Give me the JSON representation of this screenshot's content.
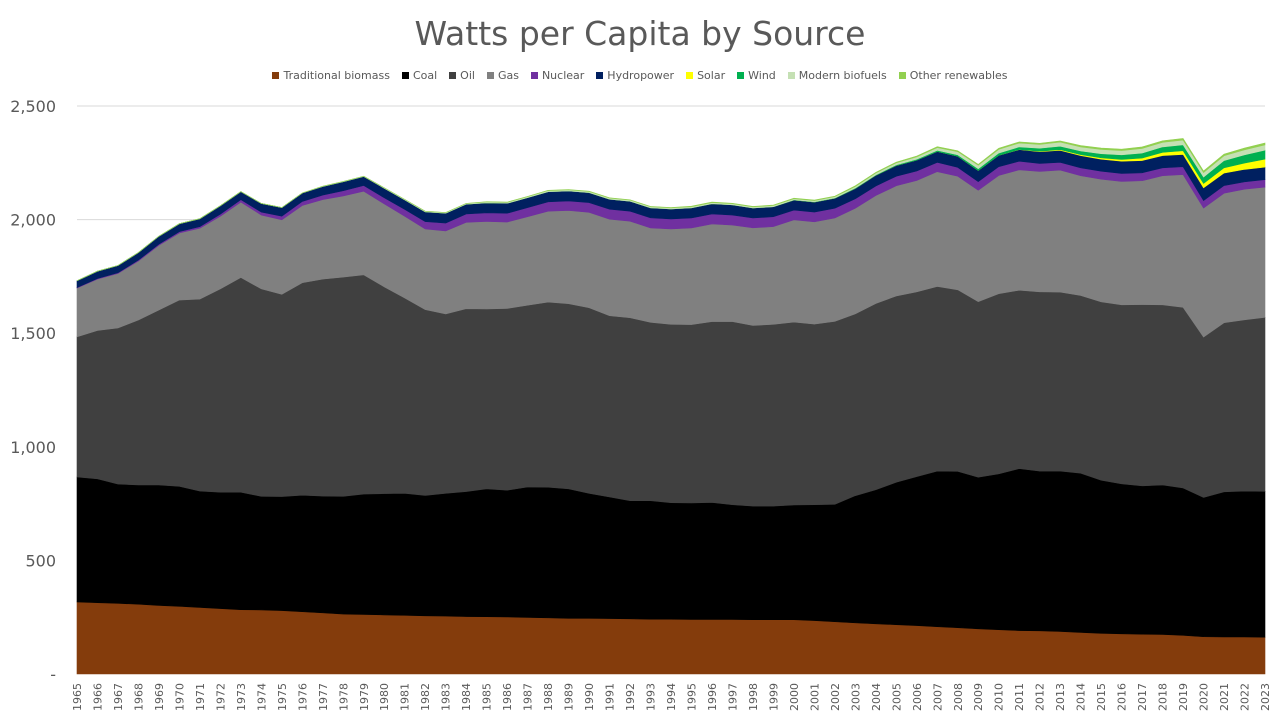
{
  "chart_data": {
    "type": "area",
    "title": "Watts per Capita by Source",
    "xlabel": "",
    "ylabel": "",
    "stacked": true,
    "ylim": [
      0,
      2500
    ],
    "grid": true,
    "legend_position": "top",
    "y_ticks": [
      "-",
      "500",
      "1,000",
      "1,500",
      "2,000",
      "2,500"
    ],
    "x": [
      1965,
      1966,
      1967,
      1968,
      1969,
      1970,
      1971,
      1972,
      1973,
      1974,
      1975,
      1976,
      1977,
      1978,
      1979,
      1980,
      1981,
      1982,
      1983,
      1984,
      1985,
      1986,
      1987,
      1988,
      1989,
      1990,
      1991,
      1992,
      1993,
      1994,
      1995,
      1996,
      1997,
      1998,
      1999,
      2000,
      2001,
      2002,
      2003,
      2004,
      2005,
      2006,
      2007,
      2008,
      2009,
      2010,
      2011,
      2012,
      2013,
      2014,
      2015,
      2016,
      2017,
      2018,
      2019,
      2020,
      2021,
      2022,
      2023
    ],
    "series": [
      {
        "name": "Traditional biomass",
        "color": "#843C0C",
        "values": [
          317,
          314,
          311,
          307,
          302,
          298,
          293,
          288,
          283,
          282,
          279,
          274,
          269,
          264,
          262,
          260,
          258,
          256,
          255,
          253,
          252,
          251,
          249,
          247,
          245,
          245,
          244,
          243,
          241,
          241,
          240,
          240,
          240,
          239,
          239,
          239,
          235,
          230,
          225,
          221,
          217,
          213,
          208,
          204,
          199,
          195,
          191,
          190,
          187,
          183,
          179,
          177,
          175,
          174,
          170,
          164,
          163,
          163,
          162
        ]
      },
      {
        "name": "Coal",
        "color": "#000000",
        "values": [
          550,
          545,
          525,
          525,
          530,
          528,
          512,
          512,
          517,
          500,
          502,
          513,
          514,
          518,
          530,
          534,
          537,
          530,
          540,
          550,
          563,
          558,
          574,
          575,
          570,
          550,
          535,
          520,
          522,
          513,
          513,
          515,
          505,
          500,
          500,
          505,
          510,
          517,
          560,
          590,
          627,
          656,
          685,
          688,
          667,
          686,
          713,
          703,
          706,
          701,
          674,
          660,
          653,
          658,
          649,
          613,
          639,
          642,
          642
        ]
      },
      {
        "name": "Oil",
        "color": "#404040",
        "values": [
          617,
          653,
          687,
          726,
          770,
          820,
          845,
          895,
          945,
          913,
          890,
          935,
          955,
          965,
          965,
          910,
          860,
          818,
          790,
          805,
          792,
          800,
          800,
          815,
          815,
          817,
          798,
          805,
          785,
          785,
          785,
          796,
          806,
          795,
          800,
          805,
          795,
          805,
          800,
          820,
          820,
          813,
          813,
          799,
          773,
          793,
          785,
          789,
          788,
          782,
          785,
          788,
          798,
          793,
          795,
          706,
          744,
          754,
          766
        ]
      },
      {
        "name": "Gas",
        "color": "#808080",
        "values": [
          215,
          226,
          240,
          260,
          285,
          295,
          312,
          320,
          332,
          325,
          328,
          340,
          350,
          357,
          368,
          365,
          360,
          355,
          365,
          380,
          385,
          380,
          390,
          400,
          410,
          420,
          425,
          425,
          415,
          420,
          425,
          430,
          425,
          430,
          430,
          450,
          450,
          455,
          465,
          475,
          485,
          490,
          505,
          500,
          490,
          520,
          530,
          530,
          537,
          527,
          540,
          543,
          545,
          568,
          584,
          568,
          570,
          575,
          573
        ]
      },
      {
        "name": "Nuclear",
        "color": "#7030A0",
        "values": [
          2,
          3,
          3,
          4,
          5,
          6,
          7,
          9,
          11,
          13,
          16,
          18,
          20,
          23,
          25,
          27,
          30,
          32,
          35,
          37,
          38,
          39,
          40,
          41,
          42,
          43,
          44,
          44,
          45,
          44,
          44,
          44,
          44,
          43,
          44,
          43,
          43,
          43,
          42,
          42,
          42,
          42,
          41,
          39,
          38,
          39,
          38,
          35,
          34,
          35,
          35,
          35,
          35,
          35,
          35,
          33,
          34,
          32,
          33
        ]
      },
      {
        "name": "Hydropower",
        "color": "#002060",
        "values": [
          30,
          32,
          32,
          33,
          35,
          35,
          35,
          37,
          35,
          38,
          38,
          37,
          38,
          40,
          40,
          42,
          42,
          43,
          43,
          43,
          44,
          44,
          44,
          45,
          44,
          44,
          44,
          44,
          44,
          44,
          45,
          45,
          45,
          44,
          44,
          44,
          44,
          44,
          45,
          47,
          47,
          48,
          48,
          49,
          49,
          50,
          51,
          52,
          53,
          54,
          53,
          54,
          54,
          54,
          54,
          56,
          55,
          55,
          55
        ]
      },
      {
        "name": "Solar",
        "color": "#FFFF00",
        "values": [
          0,
          0,
          0,
          0,
          0,
          0,
          0,
          0,
          0,
          0,
          0,
          0,
          0,
          0,
          0,
          0,
          0,
          0,
          0,
          0,
          0,
          0,
          0,
          0,
          0,
          0,
          0,
          0,
          0,
          0,
          0,
          0,
          0,
          0,
          0,
          0,
          0,
          0,
          0,
          0,
          0,
          0,
          0,
          0,
          0,
          0,
          1,
          2,
          3,
          4,
          6,
          8,
          11,
          14,
          16,
          19,
          23,
          28,
          35
        ]
      },
      {
        "name": "Wind",
        "color": "#00B050",
        "values": [
          0,
          0,
          0,
          0,
          0,
          0,
          0,
          0,
          0,
          0,
          0,
          0,
          0,
          0,
          0,
          0,
          0,
          0,
          0,
          0,
          0,
          0,
          0,
          0,
          0,
          0,
          0,
          0,
          0,
          0,
          0,
          0,
          0,
          0,
          0,
          1,
          1,
          1,
          2,
          2,
          3,
          4,
          5,
          6,
          8,
          10,
          11,
          13,
          15,
          16,
          18,
          20,
          22,
          24,
          26,
          28,
          32,
          36,
          40
        ]
      },
      {
        "name": "Modern biofuels",
        "color": "#C5E0B4",
        "values": [
          0,
          0,
          0,
          0,
          0,
          0,
          0,
          0,
          0,
          0,
          0,
          0,
          1,
          1,
          1,
          2,
          2,
          3,
          3,
          3,
          4,
          4,
          4,
          5,
          5,
          5,
          5,
          5,
          5,
          5,
          5,
          5,
          5,
          5,
          5,
          5,
          6,
          6,
          7,
          8,
          9,
          10,
          12,
          14,
          15,
          16,
          17,
          17,
          18,
          18,
          19,
          19,
          20,
          20,
          21,
          20,
          21,
          22,
          23
        ]
      },
      {
        "name": "Other renewables",
        "color": "#92D050",
        "values": [
          0,
          0,
          0,
          0,
          0,
          0,
          0,
          0,
          0,
          0,
          0,
          0,
          0,
          0,
          0,
          0,
          0,
          0,
          0,
          0,
          1,
          1,
          1,
          1,
          1,
          1,
          1,
          1,
          1,
          1,
          2,
          2,
          2,
          2,
          2,
          2,
          2,
          2,
          3,
          3,
          3,
          4,
          4,
          4,
          4,
          5,
          5,
          5,
          5,
          6,
          6,
          6,
          7,
          7,
          7,
          7,
          7,
          8,
          8
        ]
      }
    ]
  }
}
